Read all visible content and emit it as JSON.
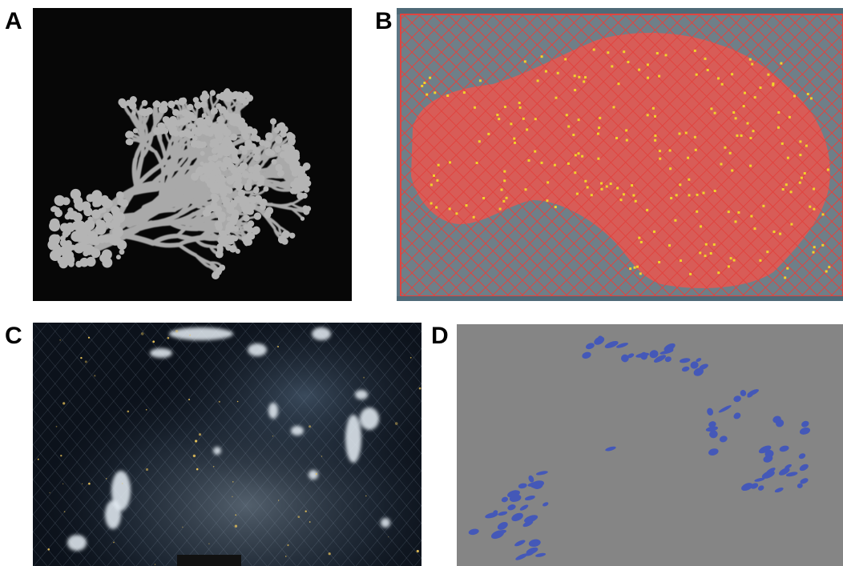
{
  "figure": {
    "panels": [
      {
        "label": "A",
        "background": "#070707",
        "subject_color": "#a9a9a9"
      },
      {
        "label": "B",
        "background": "#5d7786",
        "grid_color": "#e0443f",
        "region_color": "#d85c57",
        "highlight_color": "#f2d22a"
      },
      {
        "label": "C",
        "background": "#0e1520",
        "highlight_color": "#e6eef6"
      },
      {
        "label": "D",
        "background": "#858585",
        "marker_color": "#4458b8"
      }
    ]
  }
}
